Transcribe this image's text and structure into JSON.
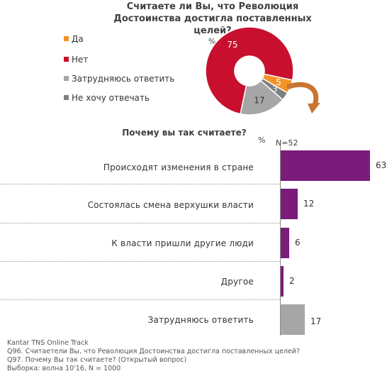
{
  "question_title": "Считаете ли Вы, что Революция Достоинства достигла поставленных целей?",
  "pct_unit": "%",
  "pct_unit_bars": "%",
  "n_label": "N=52",
  "followup_title": "Почему вы так считаете?",
  "legend": [
    {
      "label": "Да",
      "color": "#f39325"
    },
    {
      "label": "Нет",
      "color": "#c8102e"
    },
    {
      "label": "Затрудняюсь ответить",
      "color": "#a6a6a6"
    },
    {
      "label": "Не хочу отвечать",
      "color": "#7f7f7f"
    }
  ],
  "chart_data": [
    {
      "type": "pie",
      "title": "Считаете ли Вы, что Революция Достоинства достигла поставленных целей?",
      "unit": "%",
      "categories": [
        "Да",
        "Нет",
        "Затрудняюсь ответить",
        "Не хочу отвечать"
      ],
      "values": [
        5,
        75,
        17,
        3
      ],
      "colors": [
        "#f39325",
        "#c8102e",
        "#a6a6a6",
        "#7f7f7f"
      ]
    },
    {
      "type": "bar",
      "orientation": "horizontal",
      "title": "Почему вы так считаете?",
      "unit": "%",
      "n": "N=52",
      "categories": [
        "Происходят изменения в стране",
        "Состоялась смена верхушки власти",
        "К власти пришли другие люди",
        "Другое",
        "Затрудняюсь ответить"
      ],
      "values": [
        63,
        12,
        6,
        2,
        17
      ],
      "colors": [
        "#7b1c7a",
        "#7b1c7a",
        "#7b1c7a",
        "#7b1c7a",
        "#a6a6a6"
      ],
      "xlim": [
        0,
        65
      ]
    }
  ],
  "footer": [
    "Kantar TNS Online Track",
    "Q96. Считаетели Вы, что Революция Достоинства достигла поставленных целей?",
    "Q97. Почему Вы так считаете? (Открытый вопрос)",
    "Выборка: волна 10'16, N = 1000"
  ]
}
